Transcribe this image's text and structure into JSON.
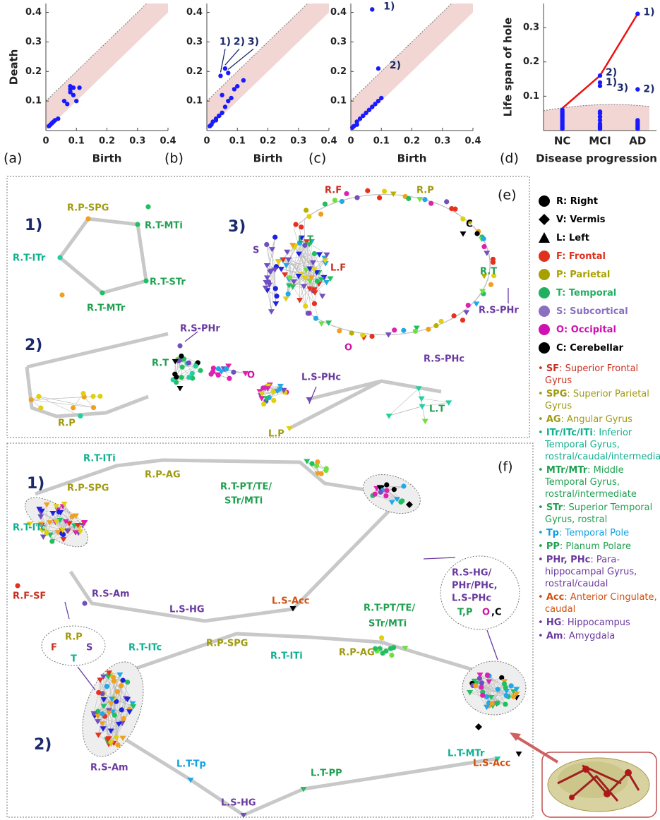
{
  "chart_data": [
    {
      "type": "scatter",
      "panel": "(a)",
      "xlabel": "Birth",
      "ylabel": "Death",
      "xlim": [
        0,
        0.4
      ],
      "ylim": [
        0,
        0.43
      ],
      "xticks": [
        0,
        0.1,
        0.2,
        0.3,
        0.4
      ],
      "yticks": [
        0.1,
        0.2,
        0.3,
        0.4
      ],
      "color": "#1a1aff",
      "band": 0.1,
      "band_color": "#f2d6d3",
      "x": [
        0.01,
        0.015,
        0.02,
        0.025,
        0.03,
        0.04,
        0.06,
        0.07,
        0.08,
        0.08,
        0.09,
        0.1,
        0.11,
        0.09,
        0.08
      ],
      "y": [
        0.015,
        0.02,
        0.025,
        0.03,
        0.035,
        0.04,
        0.1,
        0.09,
        0.14,
        0.13,
        0.145,
        0.1,
        0.145,
        0.12,
        0.15
      ],
      "annotations": []
    },
    {
      "type": "scatter",
      "panel": "(b)",
      "xlabel": "Birth",
      "xlim": [
        0,
        0.4
      ],
      "ylim": [
        0,
        0.43
      ],
      "xticks": [
        0,
        0.1,
        0.2,
        0.3,
        0.4
      ],
      "yticks": [
        0.1,
        0.2,
        0.3,
        0.4
      ],
      "color": "#1a1aff",
      "band": 0.1,
      "band_color": "#f2d6d3",
      "x": [
        0.01,
        0.015,
        0.02,
        0.03,
        0.03,
        0.04,
        0.05,
        0.06,
        0.07,
        0.08,
        0.09,
        0.1,
        0.12,
        0.045,
        0.06,
        0.07,
        0.05
      ],
      "y": [
        0.015,
        0.02,
        0.03,
        0.035,
        0.04,
        0.05,
        0.06,
        0.08,
        0.1,
        0.11,
        0.14,
        0.15,
        0.17,
        0.185,
        0.21,
        0.195,
        0.12
      ],
      "annotations": [
        {
          "text": "1)",
          "point": 13
        },
        {
          "text": "2)",
          "point": 14
        },
        {
          "text": "3)",
          "point": 15
        }
      ]
    },
    {
      "type": "scatter",
      "panel": "(c)",
      "xlabel": "Birth",
      "xlim": [
        0,
        0.4
      ],
      "ylim": [
        0,
        0.43
      ],
      "xticks": [
        0,
        0.1,
        0.2,
        0.3,
        0.4
      ],
      "yticks": [
        0.1,
        0.2,
        0.3,
        0.4
      ],
      "color": "#1a1aff",
      "band": 0.1,
      "band_color": "#f2d6d3",
      "x": [
        0.005,
        0.01,
        0.02,
        0.03,
        0.04,
        0.05,
        0.06,
        0.07,
        0.08,
        0.09,
        0.1,
        0.02,
        0.07,
        0.09
      ],
      "y": [
        0.01,
        0.015,
        0.03,
        0.04,
        0.05,
        0.06,
        0.07,
        0.08,
        0.09,
        0.1,
        0.11,
        0.02,
        0.41,
        0.21
      ],
      "annotations": [
        {
          "text": "1)",
          "point": 12
        },
        {
          "text": "2)",
          "point": 13
        }
      ]
    },
    {
      "type": "line",
      "panel": "(d)",
      "xlabel": "Disease progression",
      "ylabel": "Life span of hole",
      "categories": [
        "NC",
        "MCI",
        "AD"
      ],
      "ylim": [
        0,
        0.37
      ],
      "yticks": [
        0.1,
        0.2,
        0.3
      ],
      "values": [
        0.065,
        0.16,
        0.34
      ],
      "color": "#ee1111",
      "point_color": "#1a1aff",
      "shaded_below": 0.07,
      "band_color": "#f2d6d3",
      "points": [
        [
          0.005,
          0.01,
          0.015,
          0.02,
          0.025,
          0.03,
          0.035,
          0.04,
          0.045,
          0.05,
          0.055,
          0.06
        ],
        [
          0.005,
          0.01,
          0.015,
          0.02,
          0.03,
          0.04,
          0.05,
          0.055,
          0.13,
          0.14,
          0.16
        ],
        [
          0.005,
          0.01,
          0.015,
          0.02,
          0.025,
          0.03,
          0.12,
          0.34
        ]
      ],
      "annotations": [
        {
          "text": "1)",
          "category": 2,
          "point": 7
        },
        {
          "text": "2)",
          "category": 1,
          "point": 10
        },
        {
          "text": "1)",
          "category": 1,
          "point": 9
        },
        {
          "text": "3)",
          "category": 1,
          "point": 8
        },
        {
          "text": "2)",
          "category": 2,
          "point": 6
        }
      ]
    }
  ],
  "panel_e": {
    "label": "(e)",
    "graphs": [
      {
        "number": "1)",
        "labels": [
          "R.P-SPG",
          "R.T-MTi",
          "R.T-ITr",
          "R.T-STr",
          "R.T-MTr"
        ]
      },
      {
        "number": "2)",
        "labels": [
          "R.S-PHr",
          "R.T",
          "R.P",
          "O",
          "L.S-PHc",
          "L.T",
          "L.P"
        ]
      },
      {
        "number": "3)",
        "labels": [
          "R.F",
          "R.P",
          "C",
          "S",
          "L.T",
          "L.F",
          "R.T",
          "R.S-PHr",
          "O",
          "R.S-PHc"
        ]
      }
    ]
  },
  "panel_f": {
    "label": "(f)",
    "graphs": [
      {
        "number": "1)",
        "labels": [
          "R.T-ITi",
          "R.P-AG",
          "R.P-SPG",
          "R.T-PT/TE/",
          "STr/MTi",
          "R.T-ITc",
          "R.F-SF",
          "R.S-Am",
          "L.S-HG",
          "L.S-Acc"
        ]
      },
      {
        "number": "2)",
        "labels": [
          "R.T-PT/TE/",
          "STr/MTi",
          "R.P-SPG",
          "R.T-ITi",
          "R.P-AG",
          "R.T-ITc",
          "R.S-Am",
          "L.T-Tp",
          "L.T-PP",
          "L.T-MTr",
          "L.S-Acc",
          "L.S-HG"
        ]
      }
    ],
    "callouts": [
      [
        "F",
        "R.P",
        "S",
        "T"
      ],
      [
        "R.S-HG/",
        "PHr/PHc,",
        "L.S-PHc",
        "T,P",
        "O",
        ",C"
      ]
    ]
  },
  "legend": {
    "shapes": [
      {
        "marker": "circle",
        "label": "R: Right"
      },
      {
        "marker": "diamond",
        "label": "V: Vermis"
      },
      {
        "marker": "triangle",
        "label": "L: Left"
      }
    ],
    "lobes": [
      {
        "label": "F: Frontal",
        "color": "#e0301e"
      },
      {
        "label": "P: Parietal",
        "color": "#a8a000"
      },
      {
        "label": "T: Temporal",
        "color": "#20b060"
      },
      {
        "label": "S: Subcortical",
        "color": "#8a70c0"
      },
      {
        "label": "O: Occipital",
        "color": "#d010b0"
      },
      {
        "label": "C: Cerebellar",
        "color": "#000000"
      }
    ],
    "abbreviations": [
      {
        "term": "SF",
        "text": ": Superior Frontal Gyrus",
        "color": "#c83020"
      },
      {
        "term": "SPG",
        "text": ": Superior Parietal Gyrus",
        "color": "#a09a10"
      },
      {
        "term": "AG",
        "text": ": Angular Gyrus",
        "color": "#a09a10"
      },
      {
        "term": "ITr/ITc/ITi",
        "text": ": Inferior Temporal Gyrus, rostral/caudal/intermediate",
        "color": "#10b090"
      },
      {
        "term": "MTr/MTr",
        "text": ": Middle Temporal Gyrus, rostral/intermediate",
        "color": "#20a050"
      },
      {
        "term": "STr",
        "text": ": Superior Temporal Gyrus, rostral",
        "color": "#20a050"
      },
      {
        "term": "Tp",
        "text": ": Temporal Pole",
        "color": "#10a0e0"
      },
      {
        "term": "PP",
        "text": ": Planum Polare",
        "color": "#20a050"
      },
      {
        "term": "PHr, PHc",
        "text": ": Para-hippocampal Gyrus, rostral/caudal",
        "color": "#6a3aa0"
      },
      {
        "term": "Acc",
        "text": ": Anterior Cingulate, caudal",
        "color": "#d05010"
      },
      {
        "term": "HG",
        "text": ": Hippocampus",
        "color": "#6a3aa0"
      },
      {
        "term": "Am",
        "text": ": Amygdala",
        "color": "#6a3aa0"
      }
    ]
  }
}
